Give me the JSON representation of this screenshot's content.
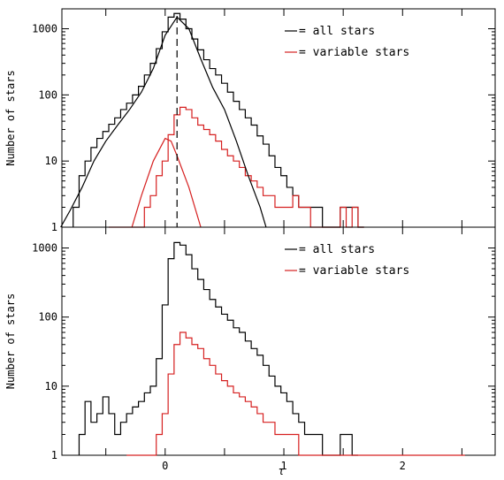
{
  "chart_data": [
    {
      "type": "line",
      "panel": "top",
      "ylabel": "Number of stars",
      "yscale": "log",
      "ylim": [
        1,
        2000
      ],
      "xlim": [
        -0.87,
        2.78
      ],
      "xticks": [
        -0.5,
        0,
        0.5,
        1,
        1.5,
        2,
        2.5
      ],
      "xtick_labels": [],
      "yticks": [
        1,
        10,
        100,
        1000
      ],
      "ytick_labels": [
        "1",
        "10",
        "100",
        "1000"
      ],
      "legend": {
        "placement": "top-right",
        "entries": [
          "= all stars",
          "= variable stars"
        ]
      },
      "vline_x": 0.1,
      "series": [
        {
          "name": "= all stars",
          "color": "#000000",
          "style": "histogram",
          "x": [
            -0.75,
            -0.7,
            -0.65,
            -0.6,
            -0.55,
            -0.5,
            -0.45,
            -0.4,
            -0.35,
            -0.3,
            -0.25,
            -0.2,
            -0.15,
            -0.1,
            -0.05,
            0.0,
            0.05,
            0.1,
            0.15,
            0.2,
            0.25,
            0.3,
            0.35,
            0.4,
            0.45,
            0.5,
            0.55,
            0.6,
            0.65,
            0.7,
            0.75,
            0.8,
            0.85,
            0.9,
            0.95,
            1.0,
            1.05,
            1.1,
            1.15,
            1.2,
            1.25,
            1.3,
            1.35,
            1.4,
            1.45,
            1.5,
            1.55,
            1.6,
            1.65
          ],
          "values": [
            2,
            6,
            10,
            16,
            22,
            28,
            36,
            45,
            60,
            75,
            100,
            135,
            200,
            300,
            500,
            900,
            1500,
            1700,
            1400,
            1000,
            700,
            480,
            340,
            250,
            200,
            150,
            110,
            80,
            60,
            45,
            35,
            24,
            18,
            12,
            8,
            6,
            4,
            3,
            2,
            2,
            2,
            2,
            1,
            1,
            1,
            2,
            2,
            2,
            1
          ]
        },
        {
          "name": "= variable stars",
          "color": "#d62020",
          "style": "histogram",
          "x": [
            -0.45,
            -0.35,
            -0.25,
            -0.2,
            -0.15,
            -0.1,
            -0.05,
            0.0,
            0.05,
            0.1,
            0.15,
            0.2,
            0.25,
            0.3,
            0.35,
            0.4,
            0.45,
            0.5,
            0.55,
            0.6,
            0.65,
            0.7,
            0.75,
            0.8,
            0.85,
            0.9,
            0.95,
            1.0,
            1.05,
            1.1,
            1.15,
            1.2,
            1.25,
            1.3,
            1.35,
            1.4,
            1.45,
            1.5,
            1.55,
            1.6,
            1.65
          ],
          "values": [
            1,
            1,
            1,
            1,
            2,
            3,
            6,
            10,
            25,
            50,
            65,
            60,
            45,
            35,
            30,
            25,
            20,
            15,
            12,
            10,
            8,
            6,
            5,
            4,
            3,
            3,
            2,
            2,
            2,
            3,
            2,
            2,
            1,
            1,
            1,
            1,
            1,
            2,
            1,
            2,
            1
          ]
        },
        {
          "name": "",
          "color": "#000000",
          "style": "curve",
          "x": [
            -0.88,
            -0.8,
            -0.7,
            -0.6,
            -0.5,
            -0.4,
            -0.3,
            -0.2,
            -0.1,
            0.0,
            0.1,
            0.2,
            0.3,
            0.4,
            0.5,
            0.6,
            0.7,
            0.8,
            0.85
          ],
          "values": [
            1,
            1.8,
            4,
            10,
            20,
            35,
            60,
            110,
            250,
            800,
            1500,
            1000,
            350,
            130,
            60,
            20,
            6,
            2,
            1
          ]
        },
        {
          "name": "",
          "color": "#d62020",
          "style": "curve",
          "x": [
            -0.28,
            -0.2,
            -0.1,
            0.0,
            0.05,
            0.1,
            0.2,
            0.3
          ],
          "values": [
            1,
            3,
            10,
            22,
            20,
            12,
            4,
            1
          ]
        }
      ]
    },
    {
      "type": "line",
      "panel": "bottom",
      "ylabel": "Number of stars",
      "xlabel": "τ",
      "yscale": "log",
      "ylim": [
        1,
        2000
      ],
      "xlim": [
        -0.87,
        2.78
      ],
      "xticks": [
        -0.5,
        0,
        0.5,
        1,
        1.5,
        2,
        2.5
      ],
      "xtick_labels": [
        "0",
        "1",
        "2"
      ],
      "yticks": [
        1,
        10,
        100,
        1000
      ],
      "ytick_labels": [
        "1",
        "10",
        "100",
        "1000"
      ],
      "legend": {
        "placement": "top-right",
        "entries": [
          "= all stars",
          "= variable stars"
        ]
      },
      "series": [
        {
          "name": "= all stars",
          "color": "#000000",
          "style": "histogram",
          "x": [
            -0.7,
            -0.65,
            -0.6,
            -0.55,
            -0.5,
            -0.45,
            -0.4,
            -0.35,
            -0.3,
            -0.25,
            -0.2,
            -0.15,
            -0.1,
            -0.05,
            0.0,
            0.05,
            0.1,
            0.15,
            0.2,
            0.25,
            0.3,
            0.35,
            0.4,
            0.45,
            0.5,
            0.55,
            0.6,
            0.65,
            0.7,
            0.75,
            0.8,
            0.85,
            0.9,
            0.95,
            1.0,
            1.05,
            1.1,
            1.15,
            1.2,
            1.25,
            1.3,
            1.35,
            1.4,
            1.45,
            1.5,
            1.55,
            1.6
          ],
          "values": [
            2,
            6,
            3,
            4,
            7,
            4,
            2,
            3,
            4,
            5,
            6,
            8,
            10,
            25,
            150,
            700,
            1200,
            1100,
            800,
            500,
            350,
            250,
            180,
            140,
            110,
            90,
            70,
            60,
            45,
            35,
            28,
            20,
            14,
            10,
            8,
            6,
            4,
            3,
            2,
            2,
            2,
            1,
            1,
            1,
            2,
            2,
            1
          ]
        },
        {
          "name": "= variable stars",
          "color": "#d62020",
          "style": "histogram",
          "x": [
            -0.3,
            -0.2,
            -0.1,
            -0.05,
            0.0,
            0.05,
            0.1,
            0.15,
            0.2,
            0.25,
            0.3,
            0.35,
            0.4,
            0.45,
            0.5,
            0.55,
            0.6,
            0.65,
            0.7,
            0.75,
            0.8,
            0.85,
            0.9,
            0.95,
            1.0,
            1.05,
            1.1,
            1.15,
            1.2,
            1.25,
            1.5,
            1.6,
            2.0,
            2.5
          ],
          "values": [
            1,
            1,
            1,
            2,
            4,
            15,
            40,
            60,
            50,
            40,
            35,
            25,
            20,
            15,
            12,
            10,
            8,
            7,
            6,
            5,
            4,
            3,
            3,
            2,
            2,
            2,
            2,
            1,
            1,
            1,
            1,
            1,
            1,
            1
          ]
        }
      ]
    }
  ]
}
